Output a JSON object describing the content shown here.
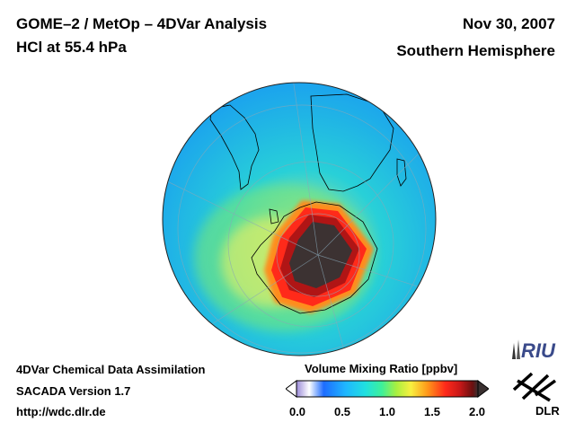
{
  "header": {
    "title_line1": "GOME–2 / MetOp – 4DVar Analysis",
    "title_line2": "HCl at 55.4 hPa",
    "date": "Nov 30, 2007",
    "region": "Southern Hemisphere"
  },
  "footer": {
    "line1": "4DVar Chemical Data Assimilation",
    "line2": "SACADA Version 1.7",
    "line3": "http://wdc.dlr.de"
  },
  "colorbar": {
    "title": "Volume Mixing Ratio [ppbv]",
    "ticks": [
      {
        "value": 0.0,
        "label": "0.0"
      },
      {
        "value": 0.5,
        "label": "0.5"
      },
      {
        "value": 1.0,
        "label": "1.0"
      },
      {
        "value": 1.5,
        "label": "1.5"
      },
      {
        "value": 2.0,
        "label": "2.0"
      }
    ],
    "range": [
      0.0,
      2.0
    ],
    "colors": [
      "#9a8ad8",
      "#ffffff",
      "#1e6cff",
      "#1fb6ff",
      "#20e0e0",
      "#3df09a",
      "#a8f040",
      "#f8f040",
      "#ff9a1a",
      "#ff2a1a",
      "#d41818",
      "#6a1010",
      "#3a3030"
    ]
  },
  "map": {
    "projection": "orthographic, south polar",
    "background_color": "#1aa6f0"
  },
  "logos": {
    "riu": "RIU",
    "dlr": "DLR"
  }
}
